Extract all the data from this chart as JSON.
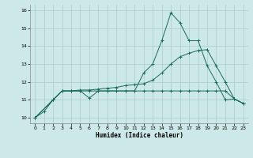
{
  "xlabel": "Humidex (Indice chaleur)",
  "background_color": "#cce8e8",
  "grid_color": "#aacccc",
  "line_color": "#1a6b5a",
  "xlim": [
    -0.5,
    23.5
  ],
  "ylim": [
    9.7,
    16.3
  ],
  "xticks": [
    0,
    1,
    2,
    3,
    4,
    5,
    6,
    7,
    8,
    9,
    10,
    11,
    12,
    13,
    14,
    15,
    16,
    17,
    18,
    19,
    20,
    21,
    22,
    23
  ],
  "yticks": [
    10,
    11,
    12,
    13,
    14,
    15,
    16
  ],
  "curve1_x": [
    0,
    1,
    2,
    3,
    4,
    5,
    6,
    7,
    8,
    9,
    10,
    11,
    12,
    13,
    14,
    15,
    16,
    17,
    18,
    19,
    20,
    21,
    22,
    23
  ],
  "curve1_y": [
    10.0,
    10.35,
    11.0,
    11.5,
    11.5,
    11.5,
    11.1,
    11.5,
    11.5,
    11.5,
    11.5,
    11.5,
    12.5,
    13.0,
    14.3,
    15.85,
    15.3,
    14.3,
    14.3,
    12.9,
    12.0,
    11.0,
    11.05,
    10.8
  ],
  "curve2_x": [
    0,
    2,
    3,
    4,
    5,
    6,
    7,
    8,
    9,
    10,
    11,
    12,
    13,
    14,
    15,
    16,
    17,
    18,
    19,
    20,
    21,
    22,
    23
  ],
  "curve2_y": [
    10.0,
    11.0,
    11.5,
    11.5,
    11.55,
    11.55,
    11.6,
    11.65,
    11.7,
    11.8,
    11.85,
    11.9,
    12.1,
    12.5,
    13.0,
    13.4,
    13.6,
    13.75,
    13.8,
    12.9,
    12.0,
    11.05,
    10.8
  ],
  "curve3_x": [
    0,
    2,
    3,
    4,
    5,
    6,
    7,
    8,
    9,
    10,
    11,
    12,
    13,
    14,
    15,
    16,
    17,
    18,
    19,
    20,
    21,
    22,
    23
  ],
  "curve3_y": [
    10.0,
    11.0,
    11.5,
    11.5,
    11.5,
    11.5,
    11.5,
    11.5,
    11.5,
    11.5,
    11.5,
    11.5,
    11.5,
    11.5,
    11.5,
    11.5,
    11.5,
    11.5,
    11.5,
    11.5,
    11.5,
    11.05,
    10.8
  ]
}
